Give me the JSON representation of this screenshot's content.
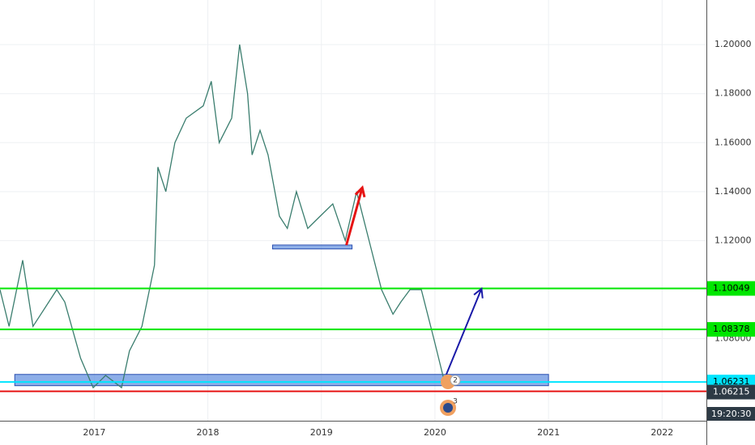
{
  "chart_data": {
    "type": "line",
    "series": [
      {
        "color": "#3a7d6e",
        "x": [
          2016.17,
          2016.25,
          2016.37,
          2016.46,
          2016.53,
          2016.67,
          2016.74,
          2016.88,
          2016.99,
          2017.1,
          2017.24,
          2017.31,
          2017.42,
          2017.53,
          2017.56,
          2017.63,
          2017.71,
          2017.81,
          2017.96,
          2018.03,
          2018.1,
          2018.21,
          2018.28,
          2018.35,
          2018.39,
          2018.46,
          2018.53,
          2018.63,
          2018.7,
          2018.78,
          2018.88,
          2018.99,
          2019.1,
          2019.21,
          2019.31,
          2019.42,
          2019.53,
          2019.63,
          2019.7,
          2019.78,
          2019.88,
          2019.99,
          2020.08
        ],
        "values": [
          1.1,
          1.085,
          1.112,
          1.085,
          1.09,
          1.1,
          1.095,
          1.072,
          1.06,
          1.065,
          1.06,
          1.075,
          1.085,
          1.11,
          1.15,
          1.14,
          1.16,
          1.17,
          1.175,
          1.185,
          1.16,
          1.17,
          1.2,
          1.18,
          1.155,
          1.165,
          1.155,
          1.13,
          1.125,
          1.14,
          1.125,
          1.13,
          1.135,
          1.12,
          1.14,
          1.12,
          1.1,
          1.09,
          1.095,
          1.1,
          1.1,
          1.08,
          1.063
        ]
      }
    ],
    "xlim": [
      2016.17,
      2022.39
    ],
    "xticks": [
      2017,
      2018,
      2019,
      2020,
      2021,
      2022
    ],
    "ylim": [
      1.0465,
      1.2182
    ],
    "yticks": [
      {
        "value": 1.2,
        "label": "1.20000"
      },
      {
        "value": 1.18,
        "label": "1.18000"
      },
      {
        "value": 1.16,
        "label": "1.16000"
      },
      {
        "value": 1.14,
        "label": "1.14000"
      },
      {
        "value": 1.12,
        "label": "1.12000"
      },
      {
        "value": 1.08,
        "label": "1.08000"
      }
    ],
    "grid": true,
    "levels": [
      {
        "value": 1.10049,
        "color": "#00e600",
        "labeled": true
      },
      {
        "value": 1.08378,
        "color": "#00e600",
        "labeled": true
      },
      {
        "value": 1.06231,
        "color": "#00e5ff",
        "labeled": true
      },
      {
        "value": 1.0585,
        "color": "#e61414",
        "labeled": false
      }
    ],
    "current_price": 1.06215,
    "time": "19:20:30",
    "zones": [
      {
        "x": [
          2016.3,
          2021.0
        ],
        "y": [
          1.0608,
          1.0654
        ]
      },
      {
        "x": [
          2018.57,
          2019.27
        ],
        "y": [
          1.1166,
          1.1182
        ]
      }
    ],
    "arrows": [
      {
        "color": "#e61414",
        "x": [
          2019.22,
          2019.36
        ],
        "y": [
          1.1182,
          1.1416
        ]
      },
      {
        "color": "#1a1aa8",
        "x": [
          2020.1,
          2020.41
        ],
        "y": [
          1.0654,
          1.1004
        ]
      }
    ],
    "markers": [
      "2",
      "3"
    ]
  }
}
